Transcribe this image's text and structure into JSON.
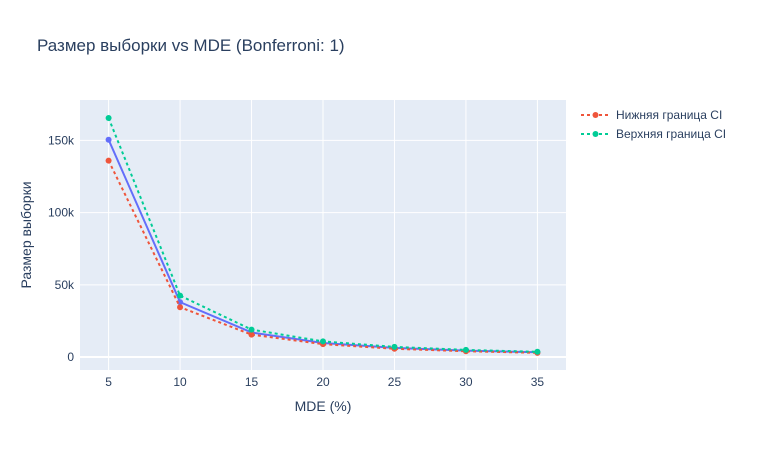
{
  "chart_data": {
    "type": "line",
    "title": "Размер выборки vs MDE (Bonferroni: 1)",
    "xlabel": "MDE (%)",
    "ylabel": "Размер выборки",
    "x": [
      5,
      10,
      15,
      20,
      25,
      30,
      35
    ],
    "xlim": [
      3,
      37
    ],
    "ylim": [
      -9000,
      178000
    ],
    "yticks": [
      0,
      50000,
      100000,
      150000
    ],
    "ytick_labels": [
      "0",
      "50k",
      "100k",
      "150k"
    ],
    "xticks": [
      5,
      10,
      15,
      20,
      25,
      30,
      35
    ],
    "xtick_labels": [
      "5",
      "10",
      "15",
      "20",
      "25",
      "30",
      "35"
    ],
    "grid": true,
    "legend_position": "top-right",
    "plot_background": "#e5ecf6",
    "series": [
      {
        "name": "",
        "color": "#636efa",
        "dash": "solid",
        "show_in_legend": false,
        "values": [
          150500,
          38000,
          17000,
          9700,
          6300,
          4400,
          3300
        ]
      },
      {
        "name": "Нижняя граница CI",
        "color": "#ef553b",
        "dash": "dot",
        "show_in_legend": true,
        "values": [
          136000,
          34500,
          15500,
          8900,
          5700,
          4000,
          2900
        ]
      },
      {
        "name": "Верхняя граница CI",
        "color": "#00cc96",
        "dash": "dot",
        "show_in_legend": true,
        "values": [
          165500,
          42500,
          19000,
          10800,
          7000,
          4900,
          3600
        ]
      }
    ]
  }
}
